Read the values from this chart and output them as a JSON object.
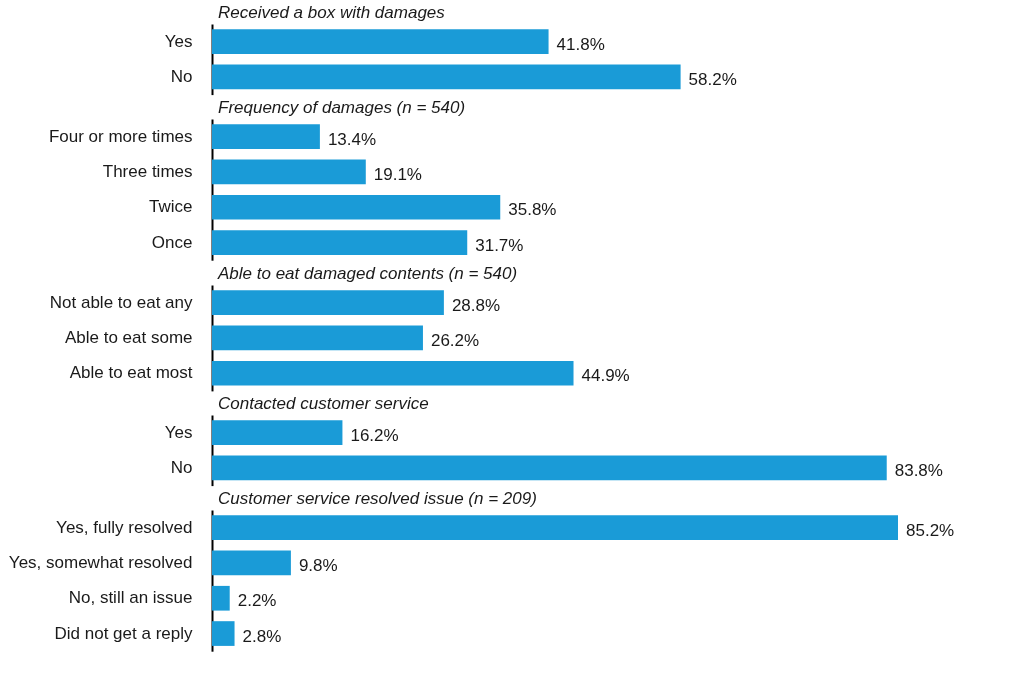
{
  "chart_data": [
    {
      "type": "bar",
      "orientation": "horizontal",
      "title": "Received a box with damages",
      "categories": [
        "Yes",
        "No"
      ],
      "values": [
        41.8,
        58.2
      ],
      "value_labels": [
        "41.8%",
        "58.2%"
      ],
      "color": "#1a9bd7",
      "tick_labels": "y"
    },
    {
      "type": "bar",
      "orientation": "horizontal",
      "title": "Frequency of damages (n = 540)",
      "categories": [
        "Four or more times",
        "Three times",
        "Twice",
        "Once"
      ],
      "values": [
        13.4,
        19.1,
        35.8,
        31.7
      ],
      "value_labels": [
        "13.4%",
        "19.1%",
        "35.8%",
        "31.7%"
      ],
      "color": "#1a9bd7",
      "tick_labels": "y"
    },
    {
      "type": "bar",
      "orientation": "horizontal",
      "title": "Able to eat damaged contents (n = 540)",
      "categories": [
        "Not able to eat any",
        "Able to eat some",
        "Able to eat most"
      ],
      "values": [
        28.8,
        26.2,
        44.9
      ],
      "value_labels": [
        "28.8%",
        "26.2%",
        "44.9%"
      ],
      "color": "#1a9bd7",
      "tick_labels": "y"
    },
    {
      "type": "bar",
      "orientation": "horizontal",
      "title": "Contacted customer service",
      "categories": [
        "Yes",
        "No"
      ],
      "values": [
        16.2,
        83.8
      ],
      "value_labels": [
        "16.2%",
        "83.8%"
      ],
      "color": "#1a9bd7",
      "tick_labels": "y"
    },
    {
      "type": "bar",
      "orientation": "horizontal",
      "title": "Customer service resolved issue (n = 209)",
      "categories": [
        "Yes, fully resolved",
        "Yes, somewhat resolved",
        "No, still an issue",
        "Did not get a reply"
      ],
      "values": [
        85.2,
        9.8,
        2.2,
        2.8
      ],
      "value_labels": [
        "85.2%",
        "9.8%",
        "2.2%",
        "2.8%"
      ],
      "color": "#1a9bd7",
      "tick_labels": "y"
    }
  ]
}
